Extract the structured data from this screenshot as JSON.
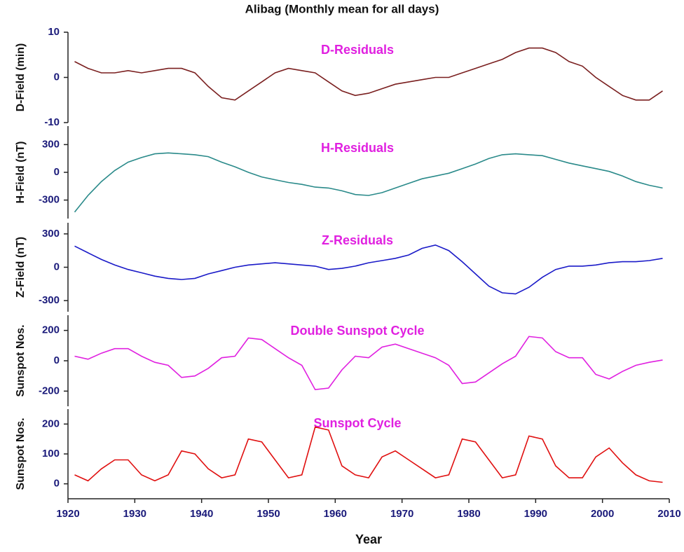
{
  "chart_data": [
    {
      "type": "line",
      "title": "Alibag (Monthly mean for all days)",
      "annotation": "D-Residuals",
      "ylabel": "D-Field (min)",
      "x": [
        1921,
        1923,
        1925,
        1927,
        1929,
        1931,
        1933,
        1935,
        1937,
        1939,
        1941,
        1943,
        1945,
        1947,
        1949,
        1951,
        1953,
        1955,
        1957,
        1959,
        1961,
        1963,
        1965,
        1967,
        1969,
        1971,
        1973,
        1975,
        1977,
        1979,
        1981,
        1983,
        1985,
        1987,
        1989,
        1991,
        1993,
        1995,
        1997,
        1999,
        2001,
        2003,
        2005,
        2007,
        2009
      ],
      "values": [
        3.5,
        2,
        1,
        1,
        1.5,
        1,
        1.5,
        2,
        2,
        1,
        -2,
        -4.5,
        -5,
        -3,
        -1,
        1,
        2,
        1.5,
        1,
        -1,
        -3,
        -4,
        -3.5,
        -2.5,
        -1.5,
        -1,
        -0.5,
        0,
        0,
        1,
        2,
        3,
        4,
        5.5,
        6.5,
        6.5,
        5.5,
        3.5,
        2.5,
        0,
        -2,
        -4,
        -5,
        -5,
        -3
      ],
      "color": "#7a1f1f",
      "xlim": [
        1920,
        2010
      ],
      "ylim": [
        -10,
        10
      ],
      "yticks": [
        -10,
        0,
        10
      ]
    },
    {
      "type": "line",
      "annotation": "H-Residuals",
      "ylabel": "H-Field (nT)",
      "x": [
        1921,
        1923,
        1925,
        1927,
        1929,
        1931,
        1933,
        1935,
        1937,
        1939,
        1941,
        1943,
        1945,
        1947,
        1949,
        1951,
        1953,
        1955,
        1957,
        1959,
        1961,
        1963,
        1965,
        1967,
        1969,
        1971,
        1973,
        1975,
        1977,
        1979,
        1981,
        1983,
        1985,
        1987,
        1989,
        1991,
        1993,
        1995,
        1997,
        1999,
        2001,
        2003,
        2005,
        2007,
        2009
      ],
      "values": [
        -430,
        -250,
        -100,
        20,
        110,
        160,
        200,
        210,
        200,
        190,
        170,
        110,
        60,
        0,
        -50,
        -80,
        -110,
        -130,
        -160,
        -170,
        -200,
        -240,
        -250,
        -220,
        -170,
        -120,
        -70,
        -40,
        -10,
        40,
        90,
        150,
        190,
        200,
        190,
        180,
        140,
        100,
        70,
        40,
        10,
        -40,
        -100,
        -140,
        -170
      ],
      "color": "#2a8a8a",
      "xlim": [
        1920,
        2010
      ],
      "ylim": [
        -500,
        500
      ],
      "yticks": [
        -300,
        0,
        300
      ]
    },
    {
      "type": "line",
      "annotation": "Z-Residuals",
      "ylabel": "Z-Field (nT)",
      "x": [
        1921,
        1923,
        1925,
        1927,
        1929,
        1931,
        1933,
        1935,
        1937,
        1939,
        1941,
        1943,
        1945,
        1947,
        1949,
        1951,
        1953,
        1955,
        1957,
        1959,
        1961,
        1963,
        1965,
        1967,
        1969,
        1971,
        1973,
        1975,
        1977,
        1979,
        1981,
        1983,
        1985,
        1987,
        1989,
        1991,
        1993,
        1995,
        1997,
        1999,
        2001,
        2003,
        2005,
        2007,
        2009
      ],
      "values": [
        190,
        130,
        70,
        20,
        -20,
        -50,
        -80,
        -100,
        -110,
        -100,
        -60,
        -30,
        0,
        20,
        30,
        40,
        30,
        20,
        10,
        -20,
        -10,
        10,
        40,
        60,
        80,
        110,
        170,
        200,
        150,
        50,
        -60,
        -170,
        -230,
        -240,
        -180,
        -90,
        -20,
        10,
        10,
        20,
        40,
        50,
        50,
        60,
        80
      ],
      "color": "#1a1ac8",
      "xlim": [
        1920,
        2010
      ],
      "ylim": [
        -400,
        400
      ],
      "yticks": [
        -300,
        0,
        300
      ]
    },
    {
      "type": "line",
      "annotation": "Double Sunspot Cycle",
      "ylabel": "Sunspot Nos.",
      "x": [
        1921,
        1923,
        1925,
        1927,
        1929,
        1931,
        1933,
        1935,
        1937,
        1939,
        1941,
        1943,
        1945,
        1947,
        1949,
        1951,
        1953,
        1955,
        1957,
        1959,
        1961,
        1963,
        1965,
        1967,
        1969,
        1971,
        1973,
        1975,
        1977,
        1979,
        1981,
        1983,
        1985,
        1987,
        1989,
        1991,
        1993,
        1995,
        1997,
        1999,
        2001,
        2003,
        2005,
        2007,
        2009
      ],
      "values": [
        30,
        10,
        50,
        80,
        80,
        30,
        -10,
        -30,
        -110,
        -100,
        -50,
        20,
        30,
        150,
        140,
        80,
        20,
        -30,
        -190,
        -180,
        -60,
        30,
        20,
        90,
        110,
        80,
        50,
        20,
        -30,
        -150,
        -140,
        -80,
        -20,
        30,
        160,
        150,
        60,
        20,
        20,
        -90,
        -120,
        -70,
        -30,
        -10,
        5
      ],
      "color": "#e020e0",
      "xlim": [
        1920,
        2010
      ],
      "ylim": [
        -300,
        300
      ],
      "yticks": [
        -200,
        0,
        200
      ]
    },
    {
      "type": "line",
      "annotation": "Sunspot Cycle",
      "ylabel": "Sunspot Nos.",
      "xlabel": "Year",
      "x": [
        1921,
        1923,
        1925,
        1927,
        1929,
        1931,
        1933,
        1935,
        1937,
        1939,
        1941,
        1943,
        1945,
        1947,
        1949,
        1951,
        1953,
        1955,
        1957,
        1959,
        1961,
        1963,
        1965,
        1967,
        1969,
        1971,
        1973,
        1975,
        1977,
        1979,
        1981,
        1983,
        1985,
        1987,
        1989,
        1991,
        1993,
        1995,
        1997,
        1999,
        2001,
        2003,
        2005,
        2007,
        2009
      ],
      "values": [
        30,
        10,
        50,
        80,
        80,
        30,
        10,
        30,
        110,
        100,
        50,
        20,
        30,
        150,
        140,
        80,
        20,
        30,
        190,
        180,
        60,
        30,
        20,
        90,
        110,
        80,
        50,
        20,
        30,
        150,
        140,
        80,
        20,
        30,
        160,
        150,
        60,
        20,
        20,
        90,
        120,
        70,
        30,
        10,
        5
      ],
      "color": "#e01010",
      "xlim": [
        1920,
        2010
      ],
      "ylim": [
        -50,
        250
      ],
      "yticks": [
        0,
        100,
        200
      ],
      "xticks": [
        1920,
        1930,
        1940,
        1950,
        1960,
        1970,
        1980,
        1990,
        2000,
        2010
      ]
    }
  ]
}
